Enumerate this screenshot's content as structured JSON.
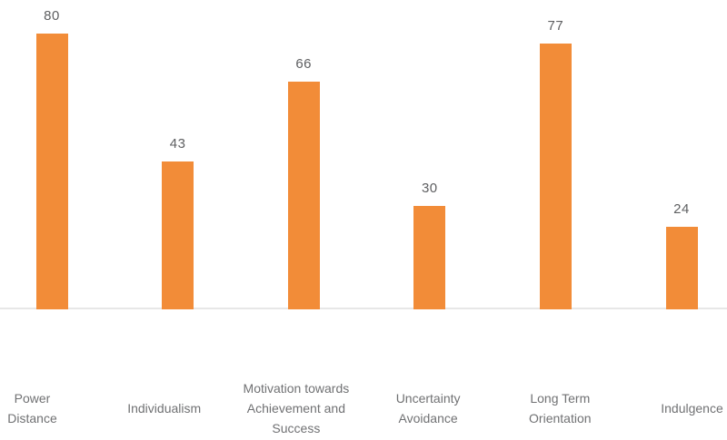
{
  "chart_data": {
    "type": "bar",
    "categories": [
      "Power\nDistance",
      "Individualism",
      "Motivation towards\nAchievement and\nSuccess",
      "Uncertainty\nAvoidance",
      "Long Term\nOrientation",
      "Indulgence"
    ],
    "values": [
      80,
      43,
      66,
      30,
      77,
      24
    ],
    "value_labels": [
      "80",
      "43",
      "66",
      "30",
      "77",
      "24"
    ],
    "title": "",
    "xlabel": "",
    "ylabel": "",
    "ylim": [
      0,
      90
    ],
    "grid": false,
    "legend": null,
    "bar_value_labels_shown": true
  },
  "colors": {
    "bar": "#F28C38",
    "value_label": "#5E5F61",
    "category_label": "#707173",
    "axis_line": "#E7E7E7",
    "background": "#FFFFFF"
  }
}
